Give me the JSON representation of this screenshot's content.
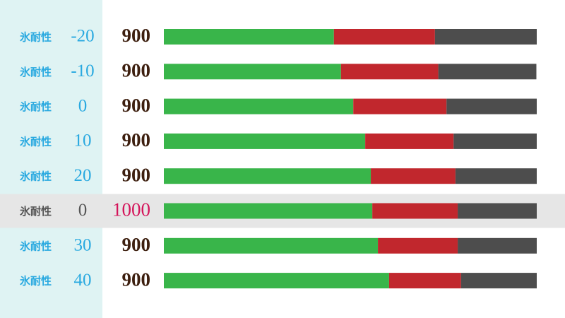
{
  "chart_data": {
    "type": "stacked-bar",
    "labels": [
      "氷耐性",
      "氷耐性",
      "氷耐性",
      "氷耐性",
      "氷耐性",
      "氷耐性",
      "氷耐性",
      "氷耐性"
    ],
    "levels": [
      "-20",
      "-10",
      "0",
      "10",
      "20",
      "0",
      "30",
      "40"
    ],
    "scores": [
      900,
      900,
      900,
      900,
      900,
      1000,
      900,
      900
    ],
    "highlight_row": 5,
    "xlim": [
      0,
      100
    ],
    "segments": [
      {
        "color": "#39b54a",
        "values": [
          45.6,
          47.5,
          50.8,
          54.0,
          55.5,
          55.9,
          57.4,
          60.4
        ]
      },
      {
        "color": "#c1272d",
        "values": [
          27.1,
          26.1,
          25.0,
          23.7,
          22.7,
          22.9,
          21.4,
          19.3
        ]
      },
      {
        "color": "#4d4d4d",
        "values": [
          27.3,
          26.3,
          24.2,
          22.3,
          21.8,
          21.2,
          21.2,
          20.3
        ]
      }
    ]
  }
}
